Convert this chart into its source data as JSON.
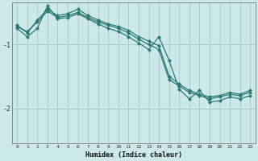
{
  "xlabel": "Humidex (Indice chaleur)",
  "bg_color": "#cce8e8",
  "grid_color": "#aacccc",
  "line_color": "#2a7a72",
  "xlim": [
    -0.5,
    23.5
  ],
  "ylim": [
    -2.55,
    -0.35
  ],
  "yticks": [
    -2,
    -1
  ],
  "xticks": [
    0,
    1,
    2,
    3,
    4,
    5,
    6,
    7,
    8,
    9,
    10,
    11,
    12,
    13,
    14,
    15,
    16,
    17,
    18,
    19,
    20,
    21,
    22,
    23
  ],
  "series1_x": [
    0,
    1,
    2,
    3,
    4,
    5,
    6,
    7,
    8,
    9,
    10,
    11,
    12,
    13,
    14,
    15,
    16,
    17,
    18,
    19,
    20,
    21,
    22,
    23
  ],
  "series1_y": [
    -0.7,
    -0.82,
    -0.62,
    -0.45,
    -0.55,
    -0.52,
    -0.45,
    -0.55,
    -0.62,
    -0.68,
    -0.72,
    -0.78,
    -0.88,
    -0.95,
    -1.02,
    -1.5,
    -1.62,
    -1.72,
    -1.78,
    -1.82,
    -1.8,
    -1.75,
    -1.78,
    -1.72
  ],
  "series2_x": [
    0,
    1,
    2,
    3,
    4,
    5,
    6,
    7,
    8,
    9,
    10,
    11,
    12,
    13,
    14,
    15,
    16,
    17,
    18,
    19,
    20,
    21,
    22,
    23
  ],
  "series2_y": [
    -0.72,
    -0.8,
    -0.65,
    -0.48,
    -0.58,
    -0.55,
    -0.5,
    -0.58,
    -0.65,
    -0.7,
    -0.75,
    -0.82,
    -0.92,
    -1.0,
    -1.08,
    -1.55,
    -1.65,
    -1.75,
    -1.8,
    -1.85,
    -1.82,
    -1.78,
    -1.8,
    -1.75
  ],
  "series3_x": [
    0,
    1,
    2,
    3,
    4,
    5,
    6,
    7,
    8,
    9,
    10,
    11,
    12,
    13,
    14,
    15,
    16,
    17,
    18,
    19,
    20,
    21,
    22,
    23
  ],
  "series3_y": [
    -0.75,
    -0.88,
    -0.75,
    -0.4,
    -0.6,
    -0.58,
    -0.52,
    -0.6,
    -0.68,
    -0.75,
    -0.8,
    -0.88,
    -0.98,
    -1.08,
    -0.88,
    -1.25,
    -1.7,
    -1.85,
    -1.72,
    -1.9,
    -1.88,
    -1.82,
    -1.85,
    -1.8
  ],
  "line_width": 0.9,
  "marker": "D",
  "marker_size": 2.2
}
